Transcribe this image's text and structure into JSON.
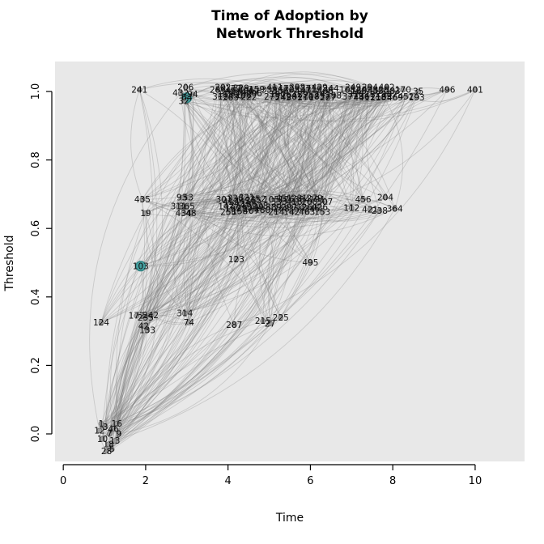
{
  "title": {
    "line1": "Time of Adoption by",
    "line2": "Network Threshold"
  },
  "chart_data": {
    "type": "scatter",
    "subtype": "diffusion-network-threshold-plot",
    "title": "Time of Adoption by Network Threshold",
    "xlabel": "Time",
    "ylabel": "Threshold",
    "xlim": [
      0,
      11
    ],
    "ylim": [
      -0.08,
      1.09
    ],
    "x_ticks": [
      0,
      2,
      4,
      6,
      8,
      10
    ],
    "y_ticks": [
      "0.0",
      "0.2",
      "0.4",
      "0.6",
      "0.8",
      "1.0"
    ],
    "grid": false,
    "legend": false,
    "threshold_levels": [
      0.0,
      0.33,
      0.5,
      0.67,
      1.0
    ],
    "colors": {
      "panel_bg": "#e8e8e8",
      "node_fill": "#9b9b9b",
      "node_stroke": "#5f5f5f",
      "label": "#0e0e0e",
      "highlight": "#3e9c9c"
    },
    "edges": {
      "count": 700,
      "seed": 1337,
      "curvature": 0.18,
      "color": "#787878",
      "opacity": 0.27,
      "width": 0.9
    },
    "nodes": [
      [
        "12",
        0.88,
        0.01
      ],
      [
        "3",
        1.02,
        0.02
      ],
      [
        "7",
        1.12,
        0
      ],
      [
        "46",
        1.22,
        0.015
      ],
      [
        "10",
        0.95,
        -0.015
      ],
      [
        "18",
        1.1,
        -0.03
      ],
      [
        "13",
        1.25,
        -0.02
      ],
      [
        "9",
        1.35,
        0
      ],
      [
        "28",
        1.05,
        -0.05
      ],
      [
        "5",
        1.18,
        -0.045
      ],
      [
        "1",
        0.92,
        0.03
      ],
      [
        "16",
        1.3,
        0.03
      ],
      [
        "124",
        0.92,
        0.325
      ],
      [
        "172",
        1.78,
        0.345
      ],
      [
        "235",
        2.0,
        0.34
      ],
      [
        "242",
        2.12,
        0.347
      ],
      [
        "42",
        1.95,
        0.315
      ],
      [
        "133",
        2.04,
        0.303
      ],
      [
        "314",
        2.95,
        0.352
      ],
      [
        "74",
        3.05,
        0.325
      ],
      [
        "287",
        4.15,
        0.318
      ],
      [
        "215",
        4.85,
        0.33
      ],
      [
        "27",
        5.02,
        0.322
      ],
      [
        "225",
        5.28,
        0.34
      ],
      [
        "103",
        1.88,
        0.49,
        1
      ],
      [
        "123",
        4.2,
        0.51
      ],
      [
        "495",
        6.0,
        0.5
      ],
      [
        "435",
        1.92,
        0.685
      ],
      [
        "19",
        2.0,
        0.645
      ],
      [
        "93",
        2.88,
        0.69
      ],
      [
        "53",
        3.03,
        0.69
      ],
      [
        "311",
        2.8,
        0.664
      ],
      [
        "434",
        2.92,
        0.645
      ],
      [
        "48",
        3.1,
        0.645
      ],
      [
        "365",
        3.0,
        0.664
      ],
      [
        "301",
        3.9,
        0.685
      ],
      [
        "147",
        3.955,
        0.665
      ],
      [
        "258",
        4.01,
        0.648
      ],
      [
        "412",
        4.065,
        0.678
      ],
      [
        "199",
        4.12,
        0.658
      ],
      [
        "336",
        4.175,
        0.688
      ],
      [
        "274",
        4.23,
        0.668
      ],
      [
        "158",
        4.285,
        0.65
      ],
      [
        "443",
        4.34,
        0.68
      ],
      [
        "290",
        4.395,
        0.66
      ],
      [
        "321",
        4.45,
        0.69
      ],
      [
        "186",
        4.505,
        0.67
      ],
      [
        "407",
        4.56,
        0.652
      ],
      [
        "265",
        4.615,
        0.682
      ],
      [
        "139",
        4.67,
        0.662
      ],
      [
        "352",
        4.725,
        0.686
      ],
      [
        "228",
        4.78,
        0.666
      ],
      [
        "480",
        4.835,
        0.654
      ],
      [
        "105",
        5.05,
        0.685
      ],
      [
        "389",
        5.112,
        0.662
      ],
      [
        "214",
        5.174,
        0.648
      ],
      [
        "333",
        5.236,
        0.678
      ],
      [
        "268",
        5.298,
        0.658
      ],
      [
        "451",
        5.36,
        0.688
      ],
      [
        "176",
        5.422,
        0.685
      ],
      [
        "297",
        5.484,
        0.662
      ],
      [
        "142",
        5.546,
        0.648
      ],
      [
        "418",
        5.608,
        0.678
      ],
      [
        "359",
        5.67,
        0.658
      ],
      [
        "231",
        5.732,
        0.688
      ],
      [
        "384",
        5.794,
        0.685
      ],
      [
        "126",
        5.856,
        0.662
      ],
      [
        "463",
        5.918,
        0.648
      ],
      [
        "208",
        5.98,
        0.678
      ],
      [
        "345",
        6.042,
        0.658
      ],
      [
        "279",
        6.104,
        0.688
      ],
      [
        "191",
        6.166,
        0.685
      ],
      [
        "426",
        6.228,
        0.662
      ],
      [
        "153",
        6.29,
        0.648
      ],
      [
        "307",
        6.352,
        0.678
      ],
      [
        "112",
        7.0,
        0.66
      ],
      [
        "456",
        7.28,
        0.685
      ],
      [
        "421",
        7.45,
        0.655
      ],
      [
        "238",
        7.68,
        0.652
      ],
      [
        "204",
        7.82,
        0.69
      ],
      [
        "364",
        8.05,
        0.658
      ],
      [
        "241",
        1.85,
        1.005
      ],
      [
        "432",
        2.85,
        0.995
      ],
      [
        "206",
        2.97,
        1.012
      ],
      [
        "64",
        3.0,
        0.982,
        1
      ],
      [
        "94",
        3.14,
        0.992
      ],
      [
        "32",
        2.93,
        0.972
      ],
      [
        "286",
        3.75,
        1.005
      ],
      [
        "310",
        3.813,
        0.985
      ],
      [
        "202",
        3.876,
        1.012
      ],
      [
        "118",
        3.939,
        0.992
      ],
      [
        "349",
        4.002,
        1.002
      ],
      [
        "263",
        4.065,
        0.982
      ],
      [
        "177",
        4.128,
        1.008
      ],
      [
        "391",
        4.191,
        0.988
      ],
      [
        "254",
        4.254,
        0.998
      ],
      [
        "329",
        4.317,
        1.01
      ],
      [
        "148",
        4.38,
        0.99
      ],
      [
        "406",
        4.443,
        1.004
      ],
      [
        "222",
        4.506,
        0.984
      ],
      [
        "367",
        4.569,
        1.0
      ],
      [
        "296",
        4.632,
        0.994
      ],
      [
        "159",
        4.695,
        1.006
      ],
      [
        "338",
        5.0,
        1.005
      ],
      [
        "275",
        5.068,
        0.985
      ],
      [
        "411",
        5.136,
        1.012
      ],
      [
        "190",
        5.204,
        0.992
      ],
      [
        "356",
        5.272,
        1.002
      ],
      [
        "243",
        5.34,
        0.982
      ],
      [
        "472",
        5.408,
        1.008
      ],
      [
        "164",
        5.476,
        0.988
      ],
      [
        "305",
        5.544,
        1.005
      ],
      [
        "281",
        5.612,
        0.985
      ],
      [
        "398",
        5.68,
        1.012
      ],
      [
        "129",
        5.748,
        0.992
      ],
      [
        "447",
        5.816,
        1.002
      ],
      [
        "216",
        5.884,
        0.982
      ],
      [
        "371",
        5.952,
        1.008
      ],
      [
        "252",
        6.02,
        0.988
      ],
      [
        "319",
        6.088,
        1.005
      ],
      [
        "183",
        6.156,
        0.985
      ],
      [
        "429",
        6.224,
        1.012
      ],
      [
        "141",
        6.292,
        0.992
      ],
      [
        "466",
        6.36,
        1.002
      ],
      [
        "227",
        6.428,
        0.982
      ],
      [
        "344",
        6.496,
        1.008
      ],
      [
        "298",
        6.564,
        0.988
      ],
      [
        "108",
        6.9,
        1.005
      ],
      [
        "377",
        6.968,
        0.985
      ],
      [
        "249",
        7.036,
        1.012
      ],
      [
        "316",
        7.104,
        0.992
      ],
      [
        "168",
        7.172,
        1.002
      ],
      [
        "441",
        7.24,
        0.982
      ],
      [
        "209",
        7.308,
        1.005
      ],
      [
        "361",
        7.376,
        0.985
      ],
      [
        "294",
        7.444,
        1.012
      ],
      [
        "132",
        7.512,
        0.992
      ],
      [
        "455",
        7.58,
        1.002
      ],
      [
        "218",
        7.648,
        0.982
      ],
      [
        "326",
        7.716,
        1.005
      ],
      [
        "185",
        7.784,
        0.985
      ],
      [
        "402",
        7.852,
        1.012
      ],
      [
        "157",
        7.92,
        0.992
      ],
      [
        "283",
        7.988,
        1.002
      ],
      [
        "469",
        8.056,
        0.982
      ],
      [
        "170",
        8.25,
        1.005
      ],
      [
        "452",
        8.32,
        0.985
      ],
      [
        "35",
        8.62,
        1.0
      ],
      [
        "193",
        8.58,
        0.983
      ],
      [
        "496",
        9.32,
        1.005
      ],
      [
        "401",
        10.0,
        1.005
      ]
    ]
  }
}
